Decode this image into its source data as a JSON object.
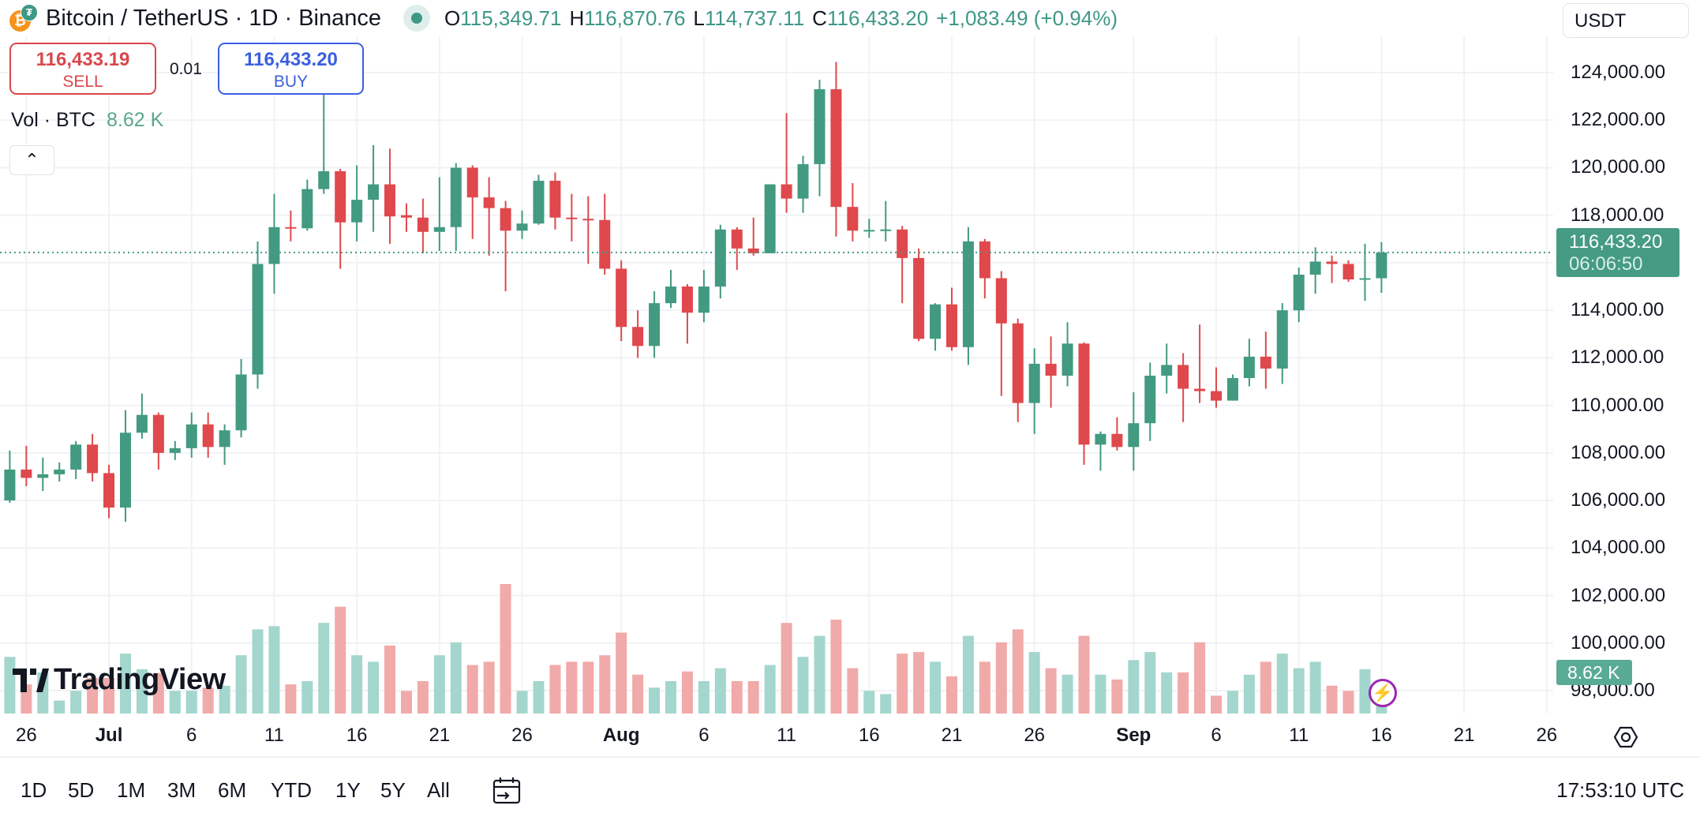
{
  "header": {
    "symbol_title": "Bitcoin / TetherUS · 1D · Binance",
    "base_icon": "bitcoin-icon",
    "quote_icon": "tether-icon",
    "base_glyph": "₿",
    "quote_glyph": "₮",
    "ohlc": {
      "o_label": "O",
      "o_value": "115,349.71",
      "h_label": "H",
      "h_value": "116,870.76",
      "l_label": "L",
      "l_value": "114,737.11",
      "c_label": "C",
      "c_value": "116,433.20",
      "change": "+1,083.49 (+0.94%)"
    },
    "currency_button": "USDT"
  },
  "trade": {
    "sell_price": "116,433.19",
    "sell_label": "SELL",
    "spread": "0.01",
    "buy_price": "116,433.20",
    "buy_label": "BUY"
  },
  "volume_legend": {
    "label": "Vol · BTC",
    "value": "8.62 K"
  },
  "collapse_glyph": "⌃",
  "price_axis": {
    "labels": [
      "124,000.00",
      "122,000.00",
      "120,000.00",
      "118,000.00",
      "114,000.00",
      "112,000.00",
      "110,000.00",
      "108,000.00",
      "106,000.00",
      "104,000.00",
      "102,000.00",
      "100,000.00",
      "98,000.00"
    ],
    "values": [
      124000,
      122000,
      120000,
      118000,
      114000,
      112000,
      110000,
      108000,
      106000,
      104000,
      102000,
      100000,
      98000
    ],
    "current_price": "116,433.20",
    "countdown": "06:06:50",
    "volume_tag": "8.62 K"
  },
  "time_axis": [
    {
      "label": "26",
      "date": "Jun 26",
      "bold": false
    },
    {
      "label": "Jul",
      "date": "Jul 1",
      "bold": true
    },
    {
      "label": "6",
      "date": "Jul 6",
      "bold": false
    },
    {
      "label": "11",
      "date": "Jul 11",
      "bold": false
    },
    {
      "label": "16",
      "date": "Jul 16",
      "bold": false
    },
    {
      "label": "21",
      "date": "Jul 21",
      "bold": false
    },
    {
      "label": "26",
      "date": "Jul 26",
      "bold": false
    },
    {
      "label": "Aug",
      "date": "Aug 1",
      "bold": true
    },
    {
      "label": "6",
      "date": "Aug 6",
      "bold": false
    },
    {
      "label": "11",
      "date": "Aug 11",
      "bold": false
    },
    {
      "label": "16",
      "date": "Aug 16",
      "bold": false
    },
    {
      "label": "21",
      "date": "Aug 21",
      "bold": false
    },
    {
      "label": "26",
      "date": "Aug 26",
      "bold": false
    },
    {
      "label": "Sep",
      "date": "Sep 1",
      "bold": true
    },
    {
      "label": "6",
      "date": "Sep 6",
      "bold": false
    },
    {
      "label": "11",
      "date": "Sep 11",
      "bold": false
    },
    {
      "label": "16",
      "date": "Sep 16",
      "bold": false
    },
    {
      "label": "21",
      "date": "Sep 21",
      "bold": false
    },
    {
      "label": "26",
      "date": "Sep 26",
      "bold": false
    }
  ],
  "toolbar": {
    "ranges": [
      "1D",
      "5D",
      "1M",
      "3M",
      "6M",
      "YTD",
      "1Y",
      "5Y",
      "All"
    ],
    "clock": "17:53:10 UTC"
  },
  "logo_text": "TradingView",
  "colors": {
    "up": "#429a81",
    "down": "#df484c",
    "vol_up": "#a3d6cd",
    "vol_down": "#f0aaa9",
    "last_price": "#459b83"
  },
  "chart_data": {
    "type": "candlestick",
    "y_range": [
      98000,
      124000
    ],
    "volume_unit": "K BTC",
    "columns": [
      "date",
      "open",
      "high",
      "low",
      "close",
      "volume"
    ],
    "candles": [
      [
        "Jun 25",
        106000,
        108100,
        105900,
        107300,
        17.5
      ],
      [
        "Jun 26",
        107300,
        108300,
        106600,
        106950,
        9
      ],
      [
        "Jun 27",
        106950,
        107800,
        106400,
        107100,
        12.7
      ],
      [
        "Jun 28",
        107100,
        107600,
        106800,
        107300,
        4
      ],
      [
        "Jun 29",
        107300,
        108500,
        106900,
        108350,
        7
      ],
      [
        "Jun 30",
        108350,
        108800,
        106800,
        107150,
        11
      ],
      [
        "Jul 1",
        107150,
        107500,
        105250,
        105700,
        11
      ],
      [
        "Jul 2",
        105700,
        109800,
        105100,
        108850,
        18.5
      ],
      [
        "Jul 3",
        108850,
        110500,
        108600,
        109600,
        13.7
      ],
      [
        "Jul 4",
        109600,
        109700,
        107300,
        108000,
        12.5
      ],
      [
        "Jul 5",
        108000,
        108500,
        107700,
        108200,
        7
      ],
      [
        "Jul 6",
        108200,
        109700,
        107800,
        109200,
        7
      ],
      [
        "Jul 7",
        109200,
        109700,
        107800,
        108250,
        8
      ],
      [
        "Jul 8",
        108250,
        109200,
        107500,
        108950,
        8.6
      ],
      [
        "Jul 9",
        108950,
        111950,
        108650,
        111300,
        18
      ],
      [
        "Jul 10",
        111300,
        116900,
        110700,
        115950,
        26
      ],
      [
        "Jul 11",
        115950,
        118900,
        114700,
        117500,
        27
      ],
      [
        "Jul 12",
        117500,
        118200,
        116900,
        117450,
        9
      ],
      [
        "Jul 13",
        117450,
        119500,
        117350,
        119100,
        10
      ],
      [
        "Jul 14",
        119100,
        123200,
        118900,
        119850,
        28
      ],
      [
        "Jul 15",
        119850,
        119950,
        115750,
        117700,
        33
      ],
      [
        "Jul 16",
        117700,
        120100,
        116900,
        118650,
        18
      ],
      [
        "Jul 17",
        118650,
        120950,
        117300,
        119300,
        16
      ],
      [
        "Jul 18",
        119300,
        120800,
        116800,
        117950,
        21
      ],
      [
        "Jul 19",
        118000,
        118500,
        117300,
        117900,
        7
      ],
      [
        "Jul 20",
        117900,
        118700,
        116400,
        117300,
        10
      ],
      [
        "Jul 21",
        117300,
        119600,
        116500,
        117500,
        18
      ],
      [
        "Jul 22",
        117500,
        120200,
        116500,
        120000,
        22
      ],
      [
        "Jul 23",
        120000,
        120100,
        117000,
        118750,
        15
      ],
      [
        "Jul 24",
        118750,
        119600,
        116300,
        118300,
        16
      ],
      [
        "Jul 25",
        118300,
        118600,
        114800,
        117350,
        40
      ],
      [
        "Jul 26",
        117350,
        118200,
        117000,
        117650,
        7
      ],
      [
        "Jul 27",
        117650,
        119700,
        117600,
        119450,
        10
      ],
      [
        "Jul 28",
        119450,
        119800,
        117400,
        117900,
        15
      ],
      [
        "Jul 29",
        117900,
        118900,
        116900,
        117850,
        16
      ],
      [
        "Jul 30",
        117850,
        118800,
        115950,
        117800,
        16
      ],
      [
        "Jul 31",
        117800,
        118900,
        115500,
        115750,
        18
      ],
      [
        "Aug 1",
        115750,
        116100,
        112700,
        113300,
        25
      ],
      [
        "Aug 2",
        113300,
        114000,
        112000,
        112500,
        12
      ],
      [
        "Aug 3",
        112500,
        114800,
        112000,
        114300,
        8
      ],
      [
        "Aug 4",
        114300,
        115700,
        114100,
        115000,
        10
      ],
      [
        "Aug 5",
        115000,
        115100,
        112600,
        113900,
        13
      ],
      [
        "Aug 6",
        113900,
        115700,
        113500,
        115000,
        10
      ],
      [
        "Aug 7",
        115000,
        117600,
        114500,
        117400,
        14
      ],
      [
        "Aug 8",
        117400,
        117500,
        115700,
        116600,
        10
      ],
      [
        "Aug 9",
        116600,
        117900,
        116300,
        116400,
        10
      ],
      [
        "Aug 10",
        116400,
        119300,
        116400,
        119300,
        15
      ],
      [
        "Aug 11",
        119300,
        122300,
        118100,
        118700,
        28
      ],
      [
        "Aug 12",
        118700,
        120500,
        118100,
        120150,
        17.5
      ],
      [
        "Aug 13",
        120150,
        123700,
        118800,
        123300,
        24
      ],
      [
        "Aug 14",
        123300,
        124450,
        117100,
        118350,
        29
      ],
      [
        "Aug 15",
        118350,
        119350,
        116900,
        117350,
        14
      ],
      [
        "Aug 16",
        117350,
        117850,
        117050,
        117380,
        7
      ],
      [
        "Aug 17",
        117380,
        118600,
        116900,
        117400,
        6
      ],
      [
        "Aug 18",
        117400,
        117550,
        114300,
        116200,
        18.5
      ],
      [
        "Aug 19",
        116200,
        116600,
        112700,
        112800,
        19
      ],
      [
        "Aug 20",
        112800,
        114300,
        112300,
        114250,
        16
      ],
      [
        "Aug 21",
        114250,
        114950,
        112300,
        112450,
        11.5
      ],
      [
        "Aug 22",
        112450,
        117500,
        111700,
        116900,
        24
      ],
      [
        "Aug 23",
        116900,
        117000,
        114500,
        115350,
        16
      ],
      [
        "Aug 24",
        115350,
        115650,
        110400,
        113450,
        22
      ],
      [
        "Aug 25",
        113450,
        113650,
        109300,
        110100,
        26
      ],
      [
        "Aug 26",
        110100,
        112400,
        108800,
        111750,
        19
      ],
      [
        "Aug 27",
        111750,
        112900,
        109900,
        111250,
        14
      ],
      [
        "Aug 28",
        111250,
        113500,
        110800,
        112600,
        12
      ],
      [
        "Aug 29",
        112600,
        112650,
        107500,
        108350,
        24
      ],
      [
        "Aug 30",
        108350,
        108900,
        107250,
        108800,
        12
      ],
      [
        "Aug 31",
        108800,
        109500,
        108100,
        108250,
        10.5
      ],
      [
        "Sep 1",
        108250,
        110550,
        107250,
        109250,
        16.5
      ],
      [
        "Sep 2",
        109250,
        111800,
        108500,
        111250,
        19
      ],
      [
        "Sep 3",
        111250,
        112600,
        110500,
        111700,
        12.7
      ],
      [
        "Sep 4",
        111700,
        112200,
        109300,
        110700,
        12.7
      ],
      [
        "Sep 5",
        110700,
        113400,
        110100,
        110600,
        22
      ],
      [
        "Sep 6",
        110600,
        111600,
        109900,
        110200,
        5.5
      ],
      [
        "Sep 7",
        110200,
        111300,
        110200,
        111150,
        7
      ],
      [
        "Sep 8",
        111150,
        112800,
        110800,
        112050,
        12
      ],
      [
        "Sep 9",
        112050,
        113100,
        110700,
        111550,
        16
      ],
      [
        "Sep 10",
        111550,
        114300,
        110900,
        114000,
        18.5
      ],
      [
        "Sep 11",
        114000,
        115800,
        113500,
        115500,
        14
      ],
      [
        "Sep 12",
        115500,
        116650,
        114700,
        116050,
        16
      ],
      [
        "Sep 13",
        116050,
        116300,
        115150,
        115950,
        8.6
      ],
      [
        "Sep 14",
        115950,
        116100,
        115200,
        115300,
        7
      ],
      [
        "Sep 15",
        115300,
        116800,
        114400,
        115350,
        13.7
      ],
      [
        "Sep 16",
        115349.71,
        116870.76,
        114737.11,
        116433.2,
        8.62
      ]
    ]
  }
}
